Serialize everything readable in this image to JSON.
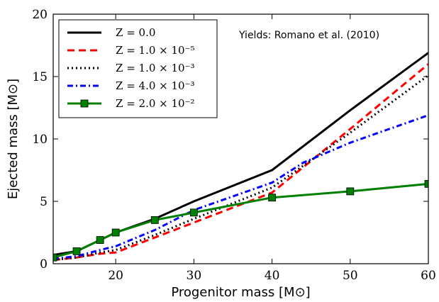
{
  "chart_data": {
    "type": "line",
    "xlabel": "Progenitor mass [M⊙]",
    "ylabel": "Ejected mass [M⊙]",
    "xlim": [
      12,
      60
    ],
    "ylim": [
      0,
      20
    ],
    "xticks": [
      20,
      30,
      40,
      50,
      60
    ],
    "yticks": [
      0,
      5,
      10,
      15,
      20
    ],
    "grid": false,
    "legend_position": "top-left",
    "annotation": "Yields: Romano et al. (2010)",
    "series": [
      {
        "name": "Z = 0.0",
        "color": "#000000",
        "style": "solid",
        "points": [
          [
            12,
            0.7
          ],
          [
            15,
            1.0
          ],
          [
            18,
            1.9
          ],
          [
            20,
            2.5
          ],
          [
            25,
            3.6
          ],
          [
            30,
            5.0
          ],
          [
            40,
            7.5
          ],
          [
            50,
            12.3
          ],
          [
            60,
            16.9
          ]
        ]
      },
      {
        "name": "Z = 1.0 × 10⁻⁵",
        "color": "#ff0000",
        "style": "dashed",
        "points": [
          [
            12,
            0.3
          ],
          [
            15,
            0.5
          ],
          [
            18,
            0.8
          ],
          [
            20,
            0.9
          ],
          [
            25,
            2.1
          ],
          [
            30,
            3.3
          ],
          [
            40,
            5.7
          ],
          [
            50,
            10.8
          ],
          [
            60,
            16.0
          ]
        ]
      },
      {
        "name": "Z = 1.0 × 10⁻³",
        "color": "#000000",
        "style": "dotted",
        "points": [
          [
            12,
            0.3
          ],
          [
            15,
            0.5
          ],
          [
            18,
            0.9
          ],
          [
            20,
            1.1
          ],
          [
            25,
            2.3
          ],
          [
            30,
            3.6
          ],
          [
            40,
            6.1
          ],
          [
            50,
            10.5
          ],
          [
            60,
            15.1
          ]
        ]
      },
      {
        "name": "Z = 4.0 × 10⁻³",
        "color": "#0000ff",
        "style": "dashdot",
        "points": [
          [
            12,
            0.4
          ],
          [
            15,
            0.6
          ],
          [
            18,
            1.1
          ],
          [
            20,
            1.4
          ],
          [
            25,
            2.7
          ],
          [
            30,
            4.3
          ],
          [
            40,
            6.5
          ],
          [
            44,
            8.1
          ],
          [
            50,
            9.7
          ],
          [
            60,
            11.9
          ]
        ]
      },
      {
        "name": "Z = 2.0 × 10⁻²",
        "color": "#008000",
        "style": "solid-markers",
        "points": [
          [
            12,
            0.5
          ],
          [
            15,
            1.0
          ],
          [
            18,
            1.9
          ],
          [
            20,
            2.5
          ],
          [
            25,
            3.5
          ],
          [
            30,
            4.1
          ],
          [
            40,
            5.3
          ],
          [
            50,
            5.8
          ],
          [
            60,
            6.4
          ]
        ]
      }
    ]
  }
}
